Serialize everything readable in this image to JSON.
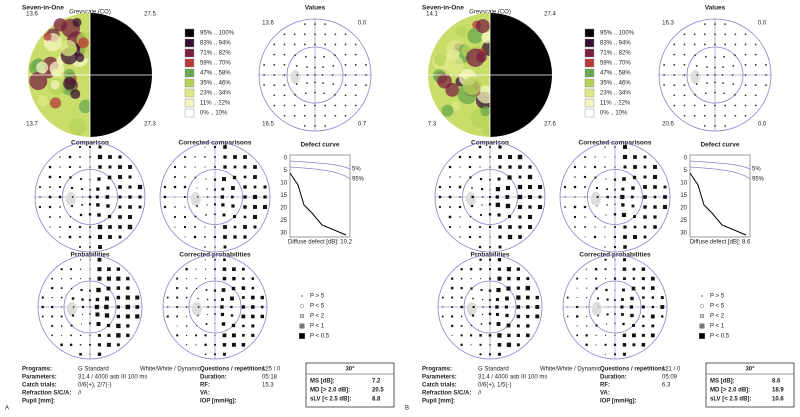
{
  "panels": [
    {
      "letter": "A",
      "greyscale": {
        "title": "Seven-in-One",
        "subtitle": "Greyscale (CO)",
        "corners": [
          "13.6",
          "27.5",
          "13.7",
          "27.3"
        ]
      },
      "legend": [
        {
          "label": "95% .. 100%",
          "color": "#000000"
        },
        {
          "label": "83% .. 94%",
          "color": "#3a1030"
        },
        {
          "label": "71% .. 82%",
          "color": "#7a2040"
        },
        {
          "label": "59% .. 70%",
          "color": "#b83a3a"
        },
        {
          "label": "47% .. 58%",
          "color": "#6aa84f"
        },
        {
          "label": "35% .. 46%",
          "color": "#b5d35a"
        },
        {
          "label": "23% .. 34%",
          "color": "#dfe98a"
        },
        {
          "label": "11% .. 22%",
          "color": "#f4f4c0"
        },
        {
          "label": "0% .. 10%",
          "color": "#ffffff"
        }
      ],
      "values": {
        "title": "Values",
        "corners": [
          "13.6",
          "0.0",
          "16.5",
          "0.7"
        ]
      },
      "comparison": "Comparison",
      "corrected_comparisons": "Corrected comparisons",
      "defect_curve": {
        "title": "Defect curve",
        "ticks": [
          "0",
          "5",
          "10",
          "15",
          "20",
          "25",
          "30"
        ],
        "bands": [
          "5%",
          "95%"
        ],
        "diffuse": "Diffuse defect [dB]: 10.2"
      },
      "probabilities": "Probabilities",
      "corrected_probabilities": "Corrected probabilities",
      "prob_legend": [
        "P > 5",
        "P < 5",
        "P < 2",
        "P < 1",
        "P < 0.5"
      ],
      "info": [
        [
          "Programs:",
          "G Standard",
          "White/White / Dynamic",
          "Questions / repetitions:",
          "125 / 0"
        ],
        [
          "Parameters:",
          "31.4 / 4000 asb III 100 ms",
          "",
          "Duration:",
          "05:18"
        ],
        [
          "Catch trials:",
          "0/6(+), 2/7(-)",
          "",
          "RF:",
          "15.3"
        ],
        [
          "Refraction S/C/A:",
          "//",
          "",
          "VA:",
          ""
        ],
        [
          "Pupil [mm]:",
          "",
          "",
          "IOP [mmHg]:",
          ""
        ]
      ],
      "summary": {
        "title": "30°",
        "rows": [
          [
            "MS [dB]:",
            "7.2"
          ],
          [
            "MD [> 2.0 dB]:",
            "20.5"
          ],
          [
            "sLV [< 2.5 dB]:",
            "8.8"
          ]
        ]
      }
    },
    {
      "letter": "B",
      "greyscale": {
        "title": "Seven-in-One",
        "subtitle": "Greyscale (CO)",
        "corners": [
          "14.1",
          "27.4",
          "7.3",
          "27.6"
        ]
      },
      "legend": [
        {
          "label": "95% .. 100%",
          "color": "#000000"
        },
        {
          "label": "83% .. 94%",
          "color": "#3a1030"
        },
        {
          "label": "71% .. 82%",
          "color": "#7a2040"
        },
        {
          "label": "59% .. 70%",
          "color": "#b83a3a"
        },
        {
          "label": "47% .. 58%",
          "color": "#6aa84f"
        },
        {
          "label": "35% .. 46%",
          "color": "#b5d35a"
        },
        {
          "label": "23% .. 34%",
          "color": "#dfe98a"
        },
        {
          "label": "11% .. 22%",
          "color": "#f4f4c0"
        },
        {
          "label": "0% .. 10%",
          "color": "#ffffff"
        }
      ],
      "values": {
        "title": "Values",
        "corners": [
          "16.3",
          "0.0",
          "20.6",
          "0.0"
        ]
      },
      "comparison": "Comparison",
      "corrected_comparisons": "Corrected comparisons",
      "defect_curve": {
        "title": "Defect curve",
        "ticks": [
          "0",
          "5",
          "10",
          "15",
          "20",
          "25",
          "30"
        ],
        "bands": [
          "5%",
          "95%"
        ],
        "diffuse": "Diffuse defect [dB]: 8.6"
      },
      "probabilities": "Probabilities",
      "corrected_probabilities": "Corrected probabilities",
      "prob_legend": [
        "P > 5",
        "P < 5",
        "P < 2",
        "P < 1",
        "P < 0.5"
      ],
      "info": [
        [
          "Programs:",
          "G Standard",
          "White/White / Dynamic",
          "Questions / repetitions:",
          "121 / 0"
        ],
        [
          "Parameters:",
          "31.4 / 4000 asb III 100 ms",
          "",
          "Duration:",
          "05:09"
        ],
        [
          "Catch trials:",
          "0/6(+), 1/5(-)",
          "",
          "RF:",
          "6.3"
        ],
        [
          "Refraction S/C/A:",
          "//",
          "",
          "VA:",
          ""
        ],
        [
          "Pupil [mm]:",
          "",
          "",
          "IOP [mmHg]:",
          ""
        ]
      ],
      "summary": {
        "title": "30°",
        "rows": [
          [
            "MS [dB]:",
            "8.6"
          ],
          [
            "MD [> 2.0 dB]:",
            "18.9"
          ],
          [
            "sLV [< 2.5 dB]:",
            "10.6"
          ]
        ]
      }
    }
  ]
}
